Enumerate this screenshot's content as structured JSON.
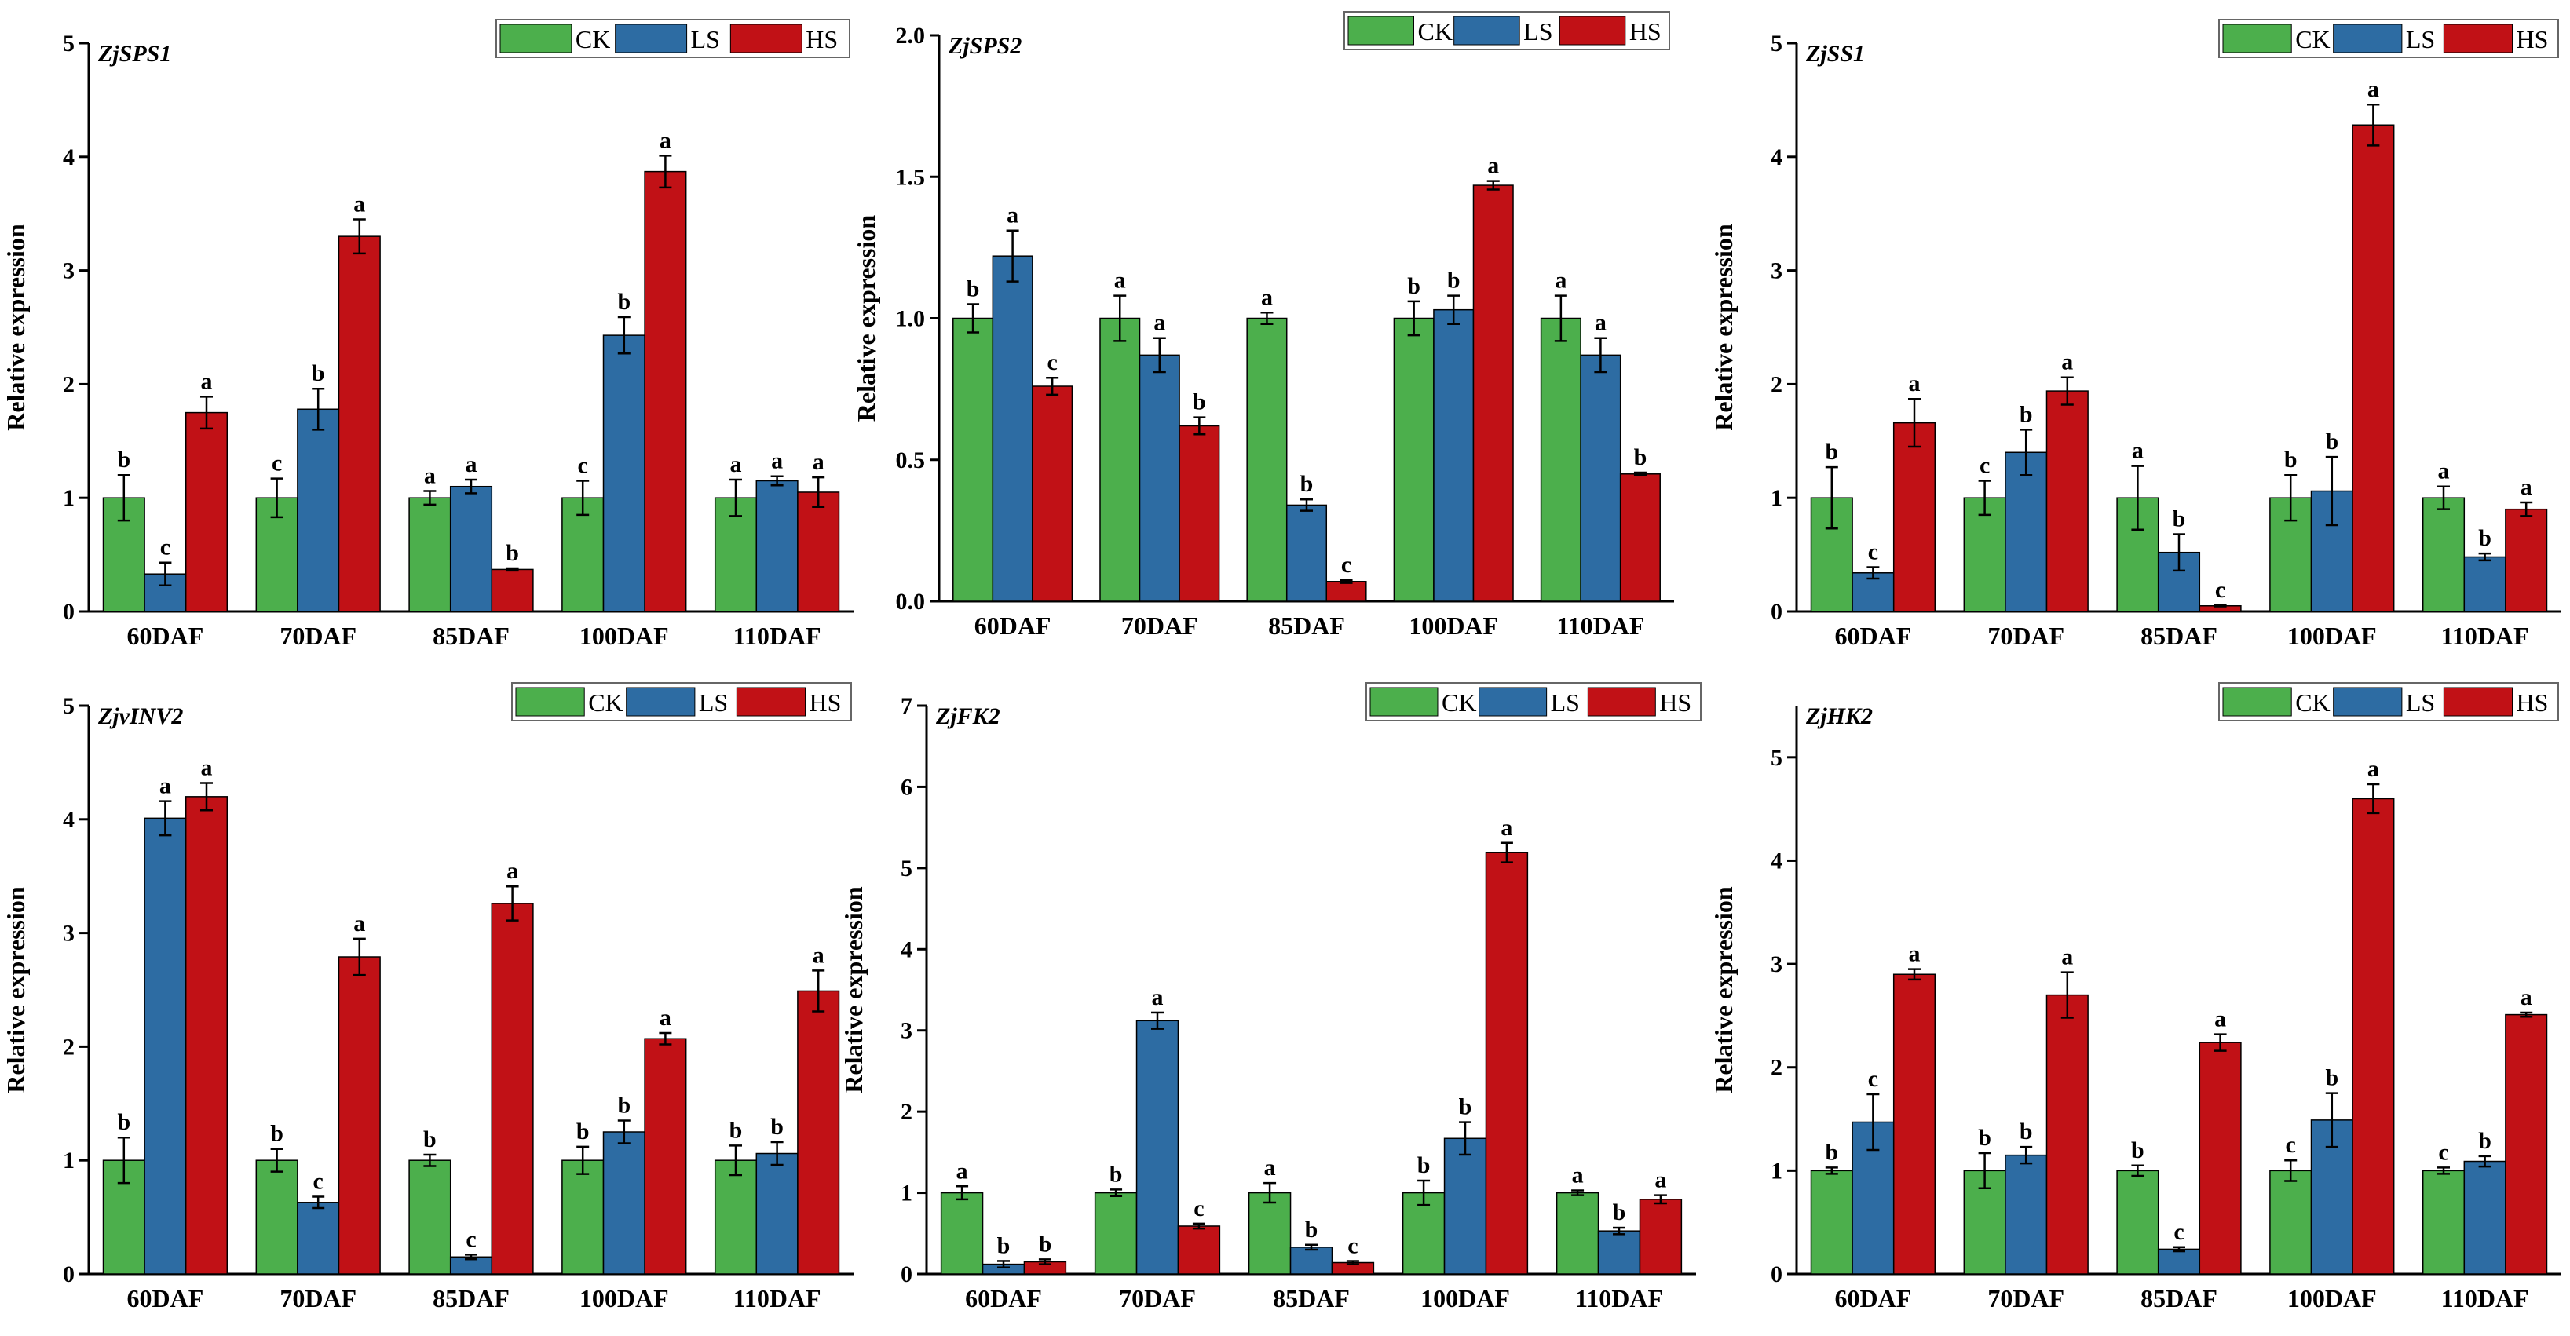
{
  "legend": [
    "CK",
    "LS",
    "HS"
  ],
  "colors": {
    "CK": "#4caf4c",
    "LS": "#2d6ca3",
    "HS": "#c11116"
  },
  "chart_data": [
    {
      "type": "bar",
      "title": "ZjSPS1",
      "ylabel": "Relative expression",
      "ylim": [
        0,
        5
      ],
      "yticks": [
        "0",
        "1",
        "2",
        "3",
        "4",
        "5"
      ],
      "categories": [
        "60DAF",
        "70DAF",
        "85DAF",
        "100DAF",
        "110DAF"
      ],
      "series": [
        {
          "name": "CK",
          "values": [
            1.0,
            1.0,
            1.0,
            1.0,
            1.0
          ],
          "err": [
            0.2,
            0.17,
            0.06,
            0.15,
            0.16
          ],
          "sig": [
            "b",
            "c",
            "a",
            "c",
            "a"
          ]
        },
        {
          "name": "LS",
          "values": [
            0.33,
            1.78,
            1.1,
            2.43,
            1.15
          ],
          "err": [
            0.1,
            0.18,
            0.06,
            0.16,
            0.04
          ],
          "sig": [
            "c",
            "b",
            "a",
            "b",
            "a"
          ]
        },
        {
          "name": "HS",
          "values": [
            1.75,
            3.3,
            0.37,
            3.87,
            1.05
          ],
          "err": [
            0.14,
            0.15,
            0.01,
            0.14,
            0.13
          ],
          "sig": [
            "a",
            "a",
            "b",
            "a",
            "a"
          ]
        }
      ]
    },
    {
      "type": "bar",
      "title": "ZjSPS2",
      "ylabel": "Relative expression",
      "ylim": [
        0,
        2.0
      ],
      "yticks": [
        "0.0",
        "0.5",
        "1.0",
        "1.5",
        "2.0"
      ],
      "categories": [
        "60DAF",
        "70DAF",
        "85DAF",
        "100DAF",
        "110DAF"
      ],
      "series": [
        {
          "name": "CK",
          "values": [
            1.0,
            1.0,
            1.0,
            1.0,
            1.0
          ],
          "err": [
            0.05,
            0.08,
            0.02,
            0.06,
            0.08
          ],
          "sig": [
            "b",
            "a",
            "a",
            "b",
            "a"
          ]
        },
        {
          "name": "LS",
          "values": [
            1.22,
            0.87,
            0.34,
            1.03,
            0.87
          ],
          "err": [
            0.09,
            0.06,
            0.02,
            0.05,
            0.06
          ],
          "sig": [
            "a",
            "a",
            "b",
            "b",
            "a"
          ]
        },
        {
          "name": "HS",
          "values": [
            0.76,
            0.62,
            0.07,
            1.47,
            0.45
          ],
          "err": [
            0.03,
            0.03,
            0.005,
            0.015,
            0.005
          ],
          "sig": [
            "c",
            "b",
            "c",
            "a",
            "b"
          ]
        }
      ]
    },
    {
      "type": "bar",
      "title": "ZjSS1",
      "ylabel": "Relative expression",
      "ylim": [
        0,
        5
      ],
      "yticks": [
        "0",
        "1",
        "2",
        "3",
        "4",
        "5"
      ],
      "categories": [
        "60DAF",
        "70DAF",
        "85DAF",
        "100DAF",
        "110DAF"
      ],
      "series": [
        {
          "name": "CK",
          "values": [
            1.0,
            1.0,
            1.0,
            1.0,
            1.0
          ],
          "err": [
            0.27,
            0.15,
            0.28,
            0.2,
            0.1
          ],
          "sig": [
            "b",
            "c",
            "a",
            "b",
            "a"
          ]
        },
        {
          "name": "LS",
          "values": [
            0.34,
            1.4,
            0.52,
            1.06,
            0.48
          ],
          "err": [
            0.05,
            0.2,
            0.16,
            0.3,
            0.03
          ],
          "sig": [
            "c",
            "b",
            "b",
            "b",
            "b"
          ]
        },
        {
          "name": "HS",
          "values": [
            1.66,
            1.94,
            0.05,
            4.28,
            0.9
          ],
          "err": [
            0.21,
            0.12,
            0.005,
            0.18,
            0.06
          ],
          "sig": [
            "a",
            "a",
            "c",
            "a",
            "a"
          ]
        }
      ]
    },
    {
      "type": "bar",
      "title": "ZjvINV2",
      "ylabel": "Relative expression",
      "ylim": [
        0,
        5
      ],
      "yticks": [
        "0",
        "1",
        "2",
        "3",
        "4",
        "5"
      ],
      "categories": [
        "60DAF",
        "70DAF",
        "85DAF",
        "100DAF",
        "110DAF"
      ],
      "series": [
        {
          "name": "CK",
          "values": [
            1.0,
            1.0,
            1.0,
            1.0,
            1.0
          ],
          "err": [
            0.2,
            0.1,
            0.05,
            0.12,
            0.13
          ],
          "sig": [
            "b",
            "b",
            "b",
            "b",
            "b"
          ]
        },
        {
          "name": "LS",
          "values": [
            4.01,
            0.63,
            0.15,
            1.25,
            1.06
          ],
          "err": [
            0.15,
            0.05,
            0.02,
            0.1,
            0.1
          ],
          "sig": [
            "a",
            "c",
            "c",
            "b",
            "b"
          ]
        },
        {
          "name": "HS",
          "values": [
            4.2,
            2.79,
            3.26,
            2.07,
            2.49
          ],
          "err": [
            0.12,
            0.16,
            0.15,
            0.05,
            0.18
          ],
          "sig": [
            "a",
            "a",
            "a",
            "a",
            "a"
          ]
        }
      ]
    },
    {
      "type": "bar",
      "title": "ZjFK2",
      "ylabel": "Relative expression",
      "ylim": [
        0,
        7
      ],
      "yticks": [
        "0",
        "1",
        "2",
        "3",
        "4",
        "5",
        "6",
        "7"
      ],
      "categories": [
        "60DAF",
        "70DAF",
        "85DAF",
        "100DAF",
        "110DAF"
      ],
      "series": [
        {
          "name": "CK",
          "values": [
            1.0,
            1.0,
            1.0,
            1.0,
            1.0
          ],
          "err": [
            0.08,
            0.04,
            0.12,
            0.15,
            0.03
          ],
          "sig": [
            "a",
            "b",
            "a",
            "b",
            "a"
          ]
        },
        {
          "name": "LS",
          "values": [
            0.12,
            3.12,
            0.33,
            1.67,
            0.53
          ],
          "err": [
            0.04,
            0.1,
            0.03,
            0.2,
            0.04
          ],
          "sig": [
            "b",
            "a",
            "b",
            "b",
            "b"
          ]
        },
        {
          "name": "HS",
          "values": [
            0.15,
            0.59,
            0.14,
            5.19,
            0.92
          ],
          "err": [
            0.03,
            0.03,
            0.02,
            0.12,
            0.05
          ],
          "sig": [
            "b",
            "c",
            "c",
            "a",
            "a"
          ]
        }
      ]
    },
    {
      "type": "bar",
      "title": "ZjHK2",
      "ylabel": "Relative expression",
      "ylim": [
        0,
        5.5
      ],
      "yticks": [
        "0",
        "1",
        "2",
        "3",
        "4",
        "5"
      ],
      "categories": [
        "60DAF",
        "70DAF",
        "85DAF",
        "100DAF",
        "110DAF"
      ],
      "series": [
        {
          "name": "CK",
          "values": [
            1.0,
            1.0,
            1.0,
            1.0,
            1.0
          ],
          "err": [
            0.03,
            0.17,
            0.05,
            0.1,
            0.03
          ],
          "sig": [
            "b",
            "b",
            "b",
            "c",
            "c"
          ]
        },
        {
          "name": "LS",
          "values": [
            1.47,
            1.15,
            0.24,
            1.49,
            1.09
          ],
          "err": [
            0.27,
            0.08,
            0.02,
            0.26,
            0.05
          ],
          "sig": [
            "c",
            "b",
            "c",
            "b",
            "b"
          ]
        },
        {
          "name": "HS",
          "values": [
            2.9,
            2.7,
            2.24,
            4.6,
            2.51
          ],
          "err": [
            0.05,
            0.22,
            0.08,
            0.14,
            0.02
          ],
          "sig": [
            "a",
            "a",
            "a",
            "a",
            "a"
          ]
        }
      ]
    }
  ]
}
